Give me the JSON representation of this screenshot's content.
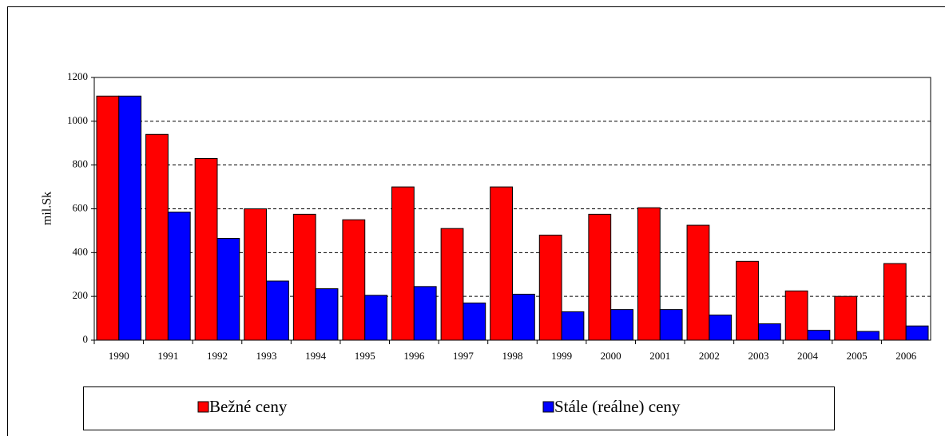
{
  "chart_data": {
    "type": "bar",
    "categories": [
      "1990",
      "1991",
      "1992",
      "1993",
      "1994",
      "1995",
      "1996",
      "1997",
      "1998",
      "1999",
      "2000",
      "2001",
      "2002",
      "2003",
      "2004",
      "2005",
      "2006"
    ],
    "series": [
      {
        "name": "Bežné ceny",
        "color": "#ff0000",
        "values": [
          1115,
          940,
          830,
          600,
          575,
          550,
          700,
          510,
          700,
          480,
          575,
          605,
          525,
          360,
          225,
          200,
          350
        ]
      },
      {
        "name": "Stále (reálne) ceny",
        "color": "#0000ff",
        "values": [
          1115,
          585,
          465,
          270,
          235,
          205,
          245,
          170,
          210,
          130,
          140,
          140,
          115,
          75,
          45,
          40,
          65
        ]
      }
    ],
    "y_label": "mil.Sk",
    "ylim": [
      0,
      1200
    ],
    "yticks": [
      0,
      200,
      400,
      600,
      800,
      1000,
      1200
    ],
    "grid": true
  }
}
